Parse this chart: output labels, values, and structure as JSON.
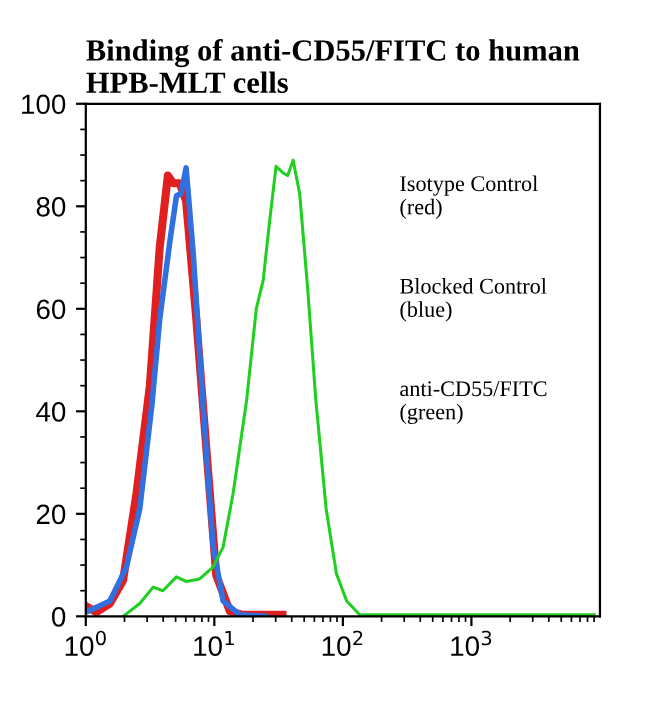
{
  "chart_data": {
    "type": "line",
    "title": "Binding of anti-CD55/FITC to human\nHPB-MLT cells",
    "series": [
      {
        "color": "#e02020",
        "x": [
          1,
          1.21,
          1.54,
          1.95,
          2.48,
          3.15,
          3.76,
          4.35,
          4.79,
          5.37,
          6.03,
          7.24,
          8.71,
          10.35,
          13.2,
          16.6,
          33.9
        ],
        "values": [
          2,
          0.8,
          2.5,
          7,
          24,
          45,
          72,
          86,
          84.5,
          84.5,
          81,
          58,
          32,
          8,
          1,
          0.3,
          0.3
        ]
      },
      {
        "color": "#3070e0",
        "x": [
          1,
          1.54,
          2.07,
          2.63,
          3.26,
          3.76,
          4.5,
          5.07,
          5.5,
          6.03,
          6.84,
          8.18,
          9.77,
          11.7,
          15.8,
          25.1
        ],
        "values": [
          0.8,
          3,
          9.6,
          21,
          41,
          58,
          73,
          82,
          82.5,
          87.5,
          71,
          41,
          13.7,
          3,
          0.3,
          0
        ]
      },
      {
        "color": "#20d020",
        "x": [
          1.95,
          2.63,
          3.34,
          3.98,
          5.07,
          6.03,
          7.69,
          9.77,
          11.7,
          14.0,
          17.8,
          21.2,
          24.0,
          26.9,
          30.2,
          34.3,
          37.2,
          41.0,
          46.1,
          53.2,
          61.7,
          74.1,
          89.1,
          107,
          135,
          9000
        ],
        "values": [
          0,
          2.5,
          5.7,
          5,
          7.7,
          6.8,
          7.3,
          9.6,
          13.5,
          24,
          42,
          60,
          65.6,
          77,
          87.8,
          86.5,
          86,
          89,
          82.5,
          64,
          42,
          21,
          8.3,
          3,
          0.3,
          0.3
        ]
      }
    ],
    "annotations": [
      "Isotype Control\n(red)",
      "Blocked Control\n(blue)",
      "anti-CD55/FITC\n(green)"
    ],
    "log": "x",
    "xlim": [
      1,
      10000
    ],
    "xticks": [
      {
        "value": 1,
        "label": "10$^{0}$"
      },
      {
        "value": 10,
        "label": "10$^{1}$"
      },
      {
        "value": 100,
        "label": "10$^{2}$"
      },
      {
        "value": 1000,
        "label": "10$^{3}$"
      }
    ],
    "ylim": [
      0,
      100
    ],
    "yticks": [
      0,
      20,
      40,
      60,
      80,
      100
    ],
    "grid": false,
    "legend": false,
    "marker": "none",
    "line_style": "solid"
  }
}
